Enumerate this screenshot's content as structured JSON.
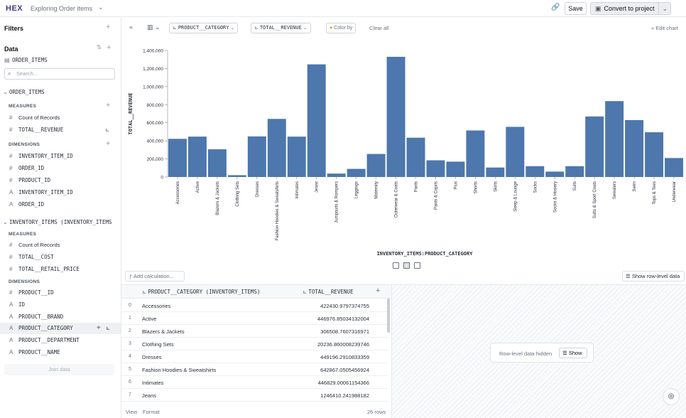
{
  "app": {
    "logo": "HEX",
    "title": "Exploring Order items",
    "save_label": "Save",
    "convert_label": "Convert to project"
  },
  "sidebar": {
    "filters_label": "Filters",
    "data_label": "Data",
    "source_table": "ORDER_ITEMS",
    "search_placeholder": "Search...",
    "join_label": "Join data",
    "groups": [
      {
        "name": "ORDER_ITEMS",
        "measures_label": "MEASURES",
        "measures": [
          {
            "sym": "#",
            "label": "Count of Records"
          },
          {
            "sym": "#",
            "label": "TOTAL__REVENUE"
          }
        ],
        "dimensions_label": "DIMENSIONS",
        "dimensions": [
          {
            "sym": "#",
            "label": "INVENTORY_ITEM_ID"
          },
          {
            "sym": "#",
            "label": "ORDER_ID"
          },
          {
            "sym": "#",
            "label": "PRODUCT_ID"
          },
          {
            "sym": "A",
            "label": "INVENTORY_ITEM_ID"
          },
          {
            "sym": "A",
            "label": "ORDER_ID"
          }
        ]
      },
      {
        "name": "INVENTORY_ITEMS (INVENTORY_ITEMS",
        "measures_label": "MEASURES",
        "measures": [
          {
            "sym": "#",
            "label": "Count of Records"
          },
          {
            "sym": "#",
            "label": "TOTAL__COST"
          },
          {
            "sym": "#",
            "label": "TOTAL__RETAIL_PRICE"
          }
        ],
        "dimensions_label": "DIMENSIONS",
        "dimensions": [
          {
            "sym": "#",
            "label": "PRODUCT__ID"
          },
          {
            "sym": "A",
            "label": "ID"
          },
          {
            "sym": "A",
            "label": "PRODUCT__BRAND"
          },
          {
            "sym": "A",
            "label": "PRODUCT__CATEGORY"
          },
          {
            "sym": "A",
            "label": "PRODUCT__DEPARTMENT"
          },
          {
            "sym": "A",
            "label": "PRODUCT__NAME"
          }
        ]
      }
    ]
  },
  "toolbar": {
    "x_field": "PRODUCT__CATEGORY",
    "y_field": "TOTAL__REVENUE",
    "color_by": "Color by",
    "clear_all": "Clear all",
    "edit_chart": "Edit chart"
  },
  "chart_data": {
    "type": "bar",
    "xlabel": "INVENTORY_ITEMS:PRODUCT_CATEGORY",
    "ylabel": "TOTAL__REVENUE",
    "ylim": [
      0,
      1400000
    ],
    "yticks": [
      "0",
      "200,000",
      "400,000",
      "600,000",
      "800,000",
      "1,000,000",
      "1,200,000",
      "1,400,000"
    ],
    "bar_color": "#4d77ad",
    "categories": [
      "Accessories",
      "Active",
      "Blazers & Jackets",
      "Clothing Sets",
      "Dresses",
      "Fashion Hoodies & Sweatshirts",
      "Intimates",
      "Jeans",
      "Jumpsuits & Rompers",
      "Leggings",
      "Maternity",
      "Outerwear & Coats",
      "Pants",
      "Pants & Capris",
      "Plus",
      "Shorts",
      "Skirts",
      "Sleep & Lounge",
      "Socks",
      "Socks & Hosiery",
      "Suits",
      "Suits & Sport Coats",
      "Sweaters",
      "Swim",
      "Tops & Tees",
      "Underwear"
    ],
    "values": [
      422431,
      446977,
      306509,
      20237,
      449196,
      642868,
      446829,
      1246410,
      38000,
      90000,
      255000,
      1330000,
      435000,
      185000,
      170000,
      515000,
      105000,
      555000,
      120000,
      60000,
      120000,
      670000,
      840000,
      630000,
      495000,
      210000
    ]
  },
  "view_toggle_label": "Show row-level data",
  "add_calc_label": "Add calculation...",
  "table": {
    "col1": "PRODUCT__CATEGORY (INVENTORY_ITEMS)",
    "col2": "TOTAL__REVENUE",
    "rows": [
      {
        "idx": "0",
        "cat": "Accessories",
        "val": "422430.9797374755"
      },
      {
        "idx": "1",
        "cat": "Active",
        "val": "446976.85034132004"
      },
      {
        "idx": "2",
        "cat": "Blazers & Jackets",
        "val": "306508.7607316971"
      },
      {
        "idx": "3",
        "cat": "Clothing Sets",
        "val": "20236.860008239746"
      },
      {
        "idx": "4",
        "cat": "Dresses",
        "val": "449196.2910833359"
      },
      {
        "idx": "5",
        "cat": "Fashion Hoodies & Sweatshirts",
        "val": "642867.0505456924"
      },
      {
        "idx": "6",
        "cat": "Intimates",
        "val": "446829.00061154366"
      },
      {
        "idx": "7",
        "cat": "Jeans",
        "val": "1246410.241988182"
      }
    ],
    "footer_view": "View",
    "footer_format": "Format",
    "row_count": "26 rows"
  },
  "hidden_panel": {
    "label": "Row-level data hidden",
    "show_label": "Show"
  }
}
